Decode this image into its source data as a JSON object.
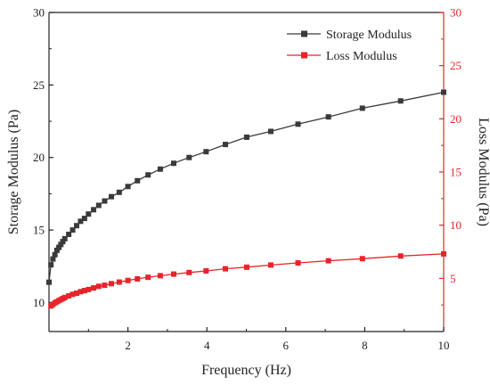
{
  "chart_data": {
    "type": "line",
    "xlabel": "Frequency (Hz)",
    "ylabel_left": "Storage Modulus (Pa)",
    "ylabel_right": "Loss Modulus (Pa)",
    "xlim": [
      0,
      10
    ],
    "ylim_left": [
      8,
      30
    ],
    "ylim_right": [
      0,
      30
    ],
    "x_ticks": [
      2,
      4,
      6,
      8,
      10
    ],
    "y_ticks_left": [
      10,
      15,
      20,
      25,
      30
    ],
    "y_ticks_right": [
      5,
      10,
      15,
      20,
      25,
      30
    ],
    "grid": false,
    "legend_position": "top-right",
    "colors": {
      "storage": "#3a3a3a",
      "loss": "#e8232a",
      "right_axis": "#e8232a"
    },
    "series": [
      {
        "name": "Storage Modulus",
        "axis": "left",
        "color": "#3a3a3a",
        "marker": "square",
        "x": [
          0.0,
          0.05,
          0.1,
          0.15,
          0.2,
          0.25,
          0.3,
          0.35,
          0.4,
          0.5,
          0.6,
          0.7,
          0.8,
          0.9,
          1.0,
          1.13,
          1.26,
          1.41,
          1.58,
          1.78,
          2.0,
          2.24,
          2.51,
          2.82,
          3.16,
          3.55,
          3.98,
          4.47,
          5.01,
          5.62,
          6.31,
          7.08,
          7.94,
          8.91,
          10.0
        ],
        "y": [
          11.4,
          12.6,
          13.0,
          13.3,
          13.6,
          13.8,
          14.0,
          14.2,
          14.4,
          14.7,
          15.0,
          15.3,
          15.6,
          15.8,
          16.1,
          16.4,
          16.7,
          17.0,
          17.3,
          17.6,
          18.0,
          18.4,
          18.8,
          19.2,
          19.6,
          20.0,
          20.4,
          20.9,
          21.4,
          21.8,
          22.3,
          22.8,
          23.4,
          23.9,
          24.5
        ]
      },
      {
        "name": "Loss Modulus",
        "axis": "right",
        "color": "#e8232a",
        "marker": "square",
        "x": [
          0.05,
          0.1,
          0.15,
          0.2,
          0.25,
          0.3,
          0.35,
          0.4,
          0.5,
          0.6,
          0.7,
          0.8,
          0.9,
          1.0,
          1.13,
          1.26,
          1.41,
          1.58,
          1.78,
          2.0,
          2.24,
          2.51,
          2.82,
          3.16,
          3.55,
          3.98,
          4.47,
          5.01,
          5.62,
          6.31,
          7.08,
          7.94,
          8.91,
          10.0
        ],
        "y": [
          2.4,
          2.55,
          2.7,
          2.8,
          2.9,
          3.0,
          3.1,
          3.2,
          3.35,
          3.5,
          3.6,
          3.75,
          3.85,
          3.95,
          4.1,
          4.25,
          4.35,
          4.5,
          4.65,
          4.8,
          4.95,
          5.1,
          5.25,
          5.4,
          5.55,
          5.7,
          5.9,
          6.05,
          6.25,
          6.45,
          6.65,
          6.85,
          7.1,
          7.3
        ]
      }
    ]
  }
}
